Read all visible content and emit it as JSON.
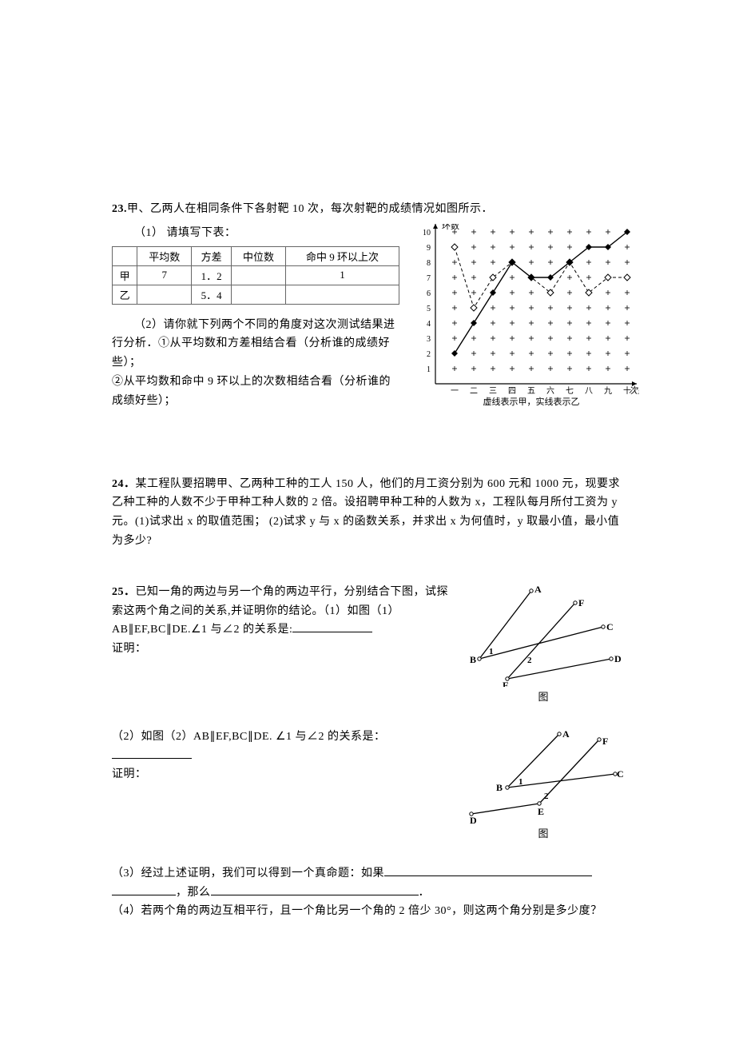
{
  "q23": {
    "number": "23.",
    "intro": "甲、乙两人在相同条件下各射靶 10 次，每次射靶的成绩情况如图所示．",
    "sub1": "（1） 请填写下表：",
    "table": {
      "headers": [
        "",
        "平均数",
        "方差",
        "中位数",
        "命中 9 环以上次"
      ],
      "rows": [
        [
          "甲",
          "7",
          "1．2",
          "",
          "1"
        ],
        [
          "乙",
          "",
          "5．4",
          "",
          ""
        ]
      ]
    },
    "sub2": "（2）请你就下列两个不同的角度对这次测试结果进行分析．①从平均数和方差相结合看（分析谁的成绩好些）；",
    "sub2b": "②从平均数和命中 9 环以上的次数相结合看（分析谁的成绩好些）；",
    "chart": {
      "y_label": "环数",
      "x_label": "次数",
      "caption": "虚线表示甲，实线表示乙",
      "x_ticks": [
        "一",
        "二",
        "三",
        "四",
        "五",
        "六",
        "七",
        "八",
        "九",
        "十"
      ],
      "y_min": 1,
      "y_max": 10,
      "series_jia": [
        9,
        5,
        7,
        8,
        7,
        6,
        8,
        6,
        7,
        7
      ],
      "series_yi": [
        2,
        4,
        6,
        8,
        7,
        7,
        8,
        9,
        9,
        10
      ],
      "grid_color": "#000000",
      "bg": "#ffffff",
      "jia_style": "dashed-open",
      "yi_style": "solid-filled"
    }
  },
  "q24": {
    "number": "24．",
    "text": "某工程队要招聘甲、乙两种工种的工人 150 人，他们的月工资分别为 600 元和 1000 元，现要求乙种工种的人数不少于甲种工种人数的 2 倍。设招聘甲种工种的人数为 x，工程队每月所付工资为 y 元。(1)试求出 x 的取值范围； (2)试求 y 与 x 的函数关系，并求出 x 为何值时，y 取最小值，最小值为多少?"
  },
  "q25": {
    "number": "25．",
    "intro": "已知一角的两边与另一个角的两边平行，分别结合下图，试探索这两个角之间的关系,并证明你的结论。（1）如图（1）AB∥EF,BC∥DE.∠1 与∠2 的关系是:",
    "proof_label": "证明：",
    "sub2": "（2）如图（2）AB∥EF,BC∥DE. ∠1 与∠2 的关系是：",
    "sub3a": "（3）经过上述证明，我们可以得到一个真命题：如果",
    "sub3b": "，那么",
    "sub3c": "．",
    "sub4": "（4）若两个角的两边互相平行，且一个角比另一个角的 2 倍少 30°，则这两个角分别是多少度？",
    "fig1": {
      "labels": {
        "A": "A",
        "B": "B",
        "C": "C",
        "D": "D",
        "E": "E",
        "F": "F",
        "ang1": "1",
        "ang2": "2"
      },
      "caption": "图"
    },
    "fig2": {
      "labels": {
        "A": "A",
        "B": "B",
        "C": "C",
        "D": "D",
        "E": "E",
        "F": "F",
        "ang1": "1",
        "ang2": "2"
      },
      "caption": "图"
    }
  },
  "colors": {
    "text": "#000000",
    "line": "#000000"
  }
}
